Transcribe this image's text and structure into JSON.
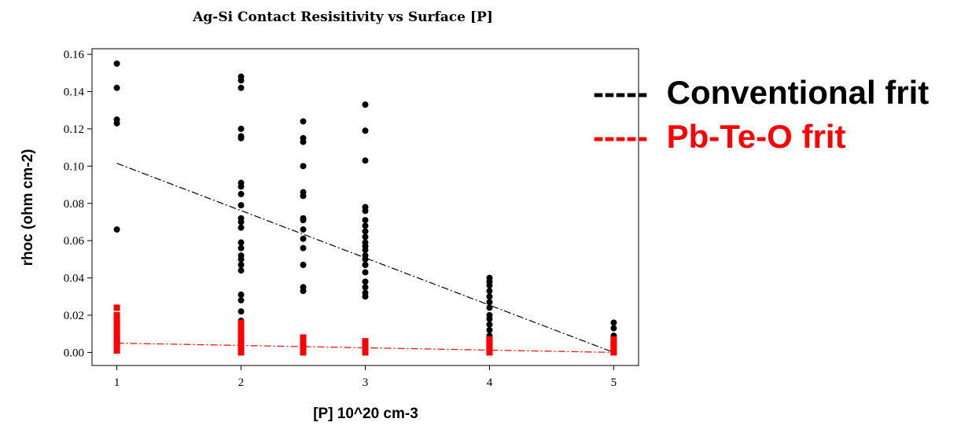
{
  "chart_data": {
    "type": "scatter",
    "title": "Ag-Si Contact Resisitivity vs Surface [P]",
    "xlabel": "[P] 10^20 cm-3",
    "ylabel": "rhoc (ohm cm-2)",
    "xlim": [
      0.8,
      5.2
    ],
    "ylim": [
      -0.007,
      0.163
    ],
    "xticks": [
      "1",
      "2",
      "3",
      "4",
      "5"
    ],
    "yticks": [
      "0.00",
      "0.02",
      "0.04",
      "0.06",
      "0.08",
      "0.10",
      "0.12",
      "0.14",
      "0.16"
    ],
    "legend_position": "right, outside plot",
    "series": [
      {
        "name": "Conventional frit",
        "legend_marker": "-----",
        "color": "#000000",
        "marker": "circle",
        "trend": {
          "x": [
            1,
            5
          ],
          "y": [
            0.1015,
            0.0
          ]
        },
        "points": [
          [
            1,
            0.155
          ],
          [
            1,
            0.142
          ],
          [
            1,
            0.125
          ],
          [
            1,
            0.123
          ],
          [
            1,
            0.066
          ],
          [
            2,
            0.148
          ],
          [
            2,
            0.146
          ],
          [
            2,
            0.142
          ],
          [
            2,
            0.12
          ],
          [
            2,
            0.116
          ],
          [
            2,
            0.115
          ],
          [
            2,
            0.091
          ],
          [
            2,
            0.089
          ],
          [
            2,
            0.085
          ],
          [
            2,
            0.079
          ],
          [
            2,
            0.072
          ],
          [
            2,
            0.07
          ],
          [
            2,
            0.067
          ],
          [
            2,
            0.059
          ],
          [
            2,
            0.056
          ],
          [
            2,
            0.052
          ],
          [
            2,
            0.05
          ],
          [
            2,
            0.047
          ],
          [
            2,
            0.044
          ],
          [
            2,
            0.031
          ],
          [
            2,
            0.028
          ],
          [
            2,
            0.022
          ],
          [
            2,
            0.017
          ],
          [
            2.5,
            0.124
          ],
          [
            2.5,
            0.115
          ],
          [
            2.5,
            0.113
          ],
          [
            2.5,
            0.1
          ],
          [
            2.5,
            0.086
          ],
          [
            2.5,
            0.084
          ],
          [
            2.5,
            0.072
          ],
          [
            2.5,
            0.071
          ],
          [
            2.5,
            0.066
          ],
          [
            2.5,
            0.061
          ],
          [
            2.5,
            0.056
          ],
          [
            2.5,
            0.047
          ],
          [
            2.5,
            0.035
          ],
          [
            2.5,
            0.033
          ],
          [
            3,
            0.133
          ],
          [
            3,
            0.119
          ],
          [
            3,
            0.103
          ],
          [
            3,
            0.078
          ],
          [
            3,
            0.076
          ],
          [
            3,
            0.071
          ],
          [
            3,
            0.068
          ],
          [
            3,
            0.065
          ],
          [
            3,
            0.062
          ],
          [
            3,
            0.059
          ],
          [
            3,
            0.057
          ],
          [
            3,
            0.055
          ],
          [
            3,
            0.052
          ],
          [
            3,
            0.05
          ],
          [
            3,
            0.047
          ],
          [
            3,
            0.043
          ],
          [
            3,
            0.038
          ],
          [
            3,
            0.035
          ],
          [
            3,
            0.032
          ],
          [
            3,
            0.03
          ],
          [
            4,
            0.04
          ],
          [
            4,
            0.038
          ],
          [
            4,
            0.036
          ],
          [
            4,
            0.033
          ],
          [
            4,
            0.03
          ],
          [
            4,
            0.027
          ],
          [
            4,
            0.024
          ],
          [
            4,
            0.02
          ],
          [
            4,
            0.018
          ],
          [
            4,
            0.015
          ],
          [
            4,
            0.012
          ],
          [
            4,
            0.009
          ],
          [
            4,
            0.006
          ],
          [
            5,
            0.016
          ],
          [
            5,
            0.013
          ],
          [
            5,
            0.009
          ],
          [
            5,
            0.006
          ],
          [
            5,
            0.004
          ]
        ]
      },
      {
        "name": "Pb-Te-O frit",
        "legend_marker": "-----",
        "color": "#ff0000",
        "marker": "square",
        "trend": {
          "x": [
            1,
            5
          ],
          "y": [
            0.005,
            0.0
          ]
        },
        "points": [
          [
            1,
            0.024
          ],
          [
            1,
            0.02
          ],
          [
            1,
            0.018
          ],
          [
            1,
            0.016
          ],
          [
            1,
            0.014
          ],
          [
            1,
            0.012
          ],
          [
            1,
            0.01
          ],
          [
            1,
            0.009
          ],
          [
            1,
            0.008
          ],
          [
            1,
            0.007
          ],
          [
            1,
            0.006
          ],
          [
            1,
            0.005
          ],
          [
            1,
            0.004
          ],
          [
            1,
            0.003
          ],
          [
            1,
            0.002
          ],
          [
            1,
            0.001
          ],
          [
            2,
            0.016
          ],
          [
            2,
            0.014
          ],
          [
            2,
            0.012
          ],
          [
            2,
            0.01
          ],
          [
            2,
            0.009
          ],
          [
            2,
            0.008
          ],
          [
            2,
            0.007
          ],
          [
            2,
            0.006
          ],
          [
            2,
            0.005
          ],
          [
            2,
            0.004
          ],
          [
            2,
            0.003
          ],
          [
            2,
            0.002
          ],
          [
            2,
            0.001
          ],
          [
            2,
            0.0
          ],
          [
            2.5,
            0.008
          ],
          [
            2.5,
            0.007
          ],
          [
            2.5,
            0.006
          ],
          [
            2.5,
            0.005
          ],
          [
            2.5,
            0.004
          ],
          [
            2.5,
            0.003
          ],
          [
            2.5,
            0.002
          ],
          [
            2.5,
            0.001
          ],
          [
            2.5,
            0.0
          ],
          [
            3,
            0.006
          ],
          [
            3,
            0.005
          ],
          [
            3,
            0.004
          ],
          [
            3,
            0.003
          ],
          [
            3,
            0.002
          ],
          [
            3,
            0.001
          ],
          [
            3,
            0.0
          ],
          [
            4,
            0.007
          ],
          [
            4,
            0.006
          ],
          [
            4,
            0.005
          ],
          [
            4,
            0.004
          ],
          [
            4,
            0.003
          ],
          [
            4,
            0.002
          ],
          [
            4,
            0.001
          ],
          [
            4,
            0.0
          ],
          [
            5,
            0.007
          ],
          [
            5,
            0.006
          ],
          [
            5,
            0.005
          ],
          [
            5,
            0.004
          ],
          [
            5,
            0.003
          ],
          [
            5,
            0.002
          ],
          [
            5,
            0.001
          ],
          [
            5,
            0.0
          ]
        ]
      }
    ]
  }
}
